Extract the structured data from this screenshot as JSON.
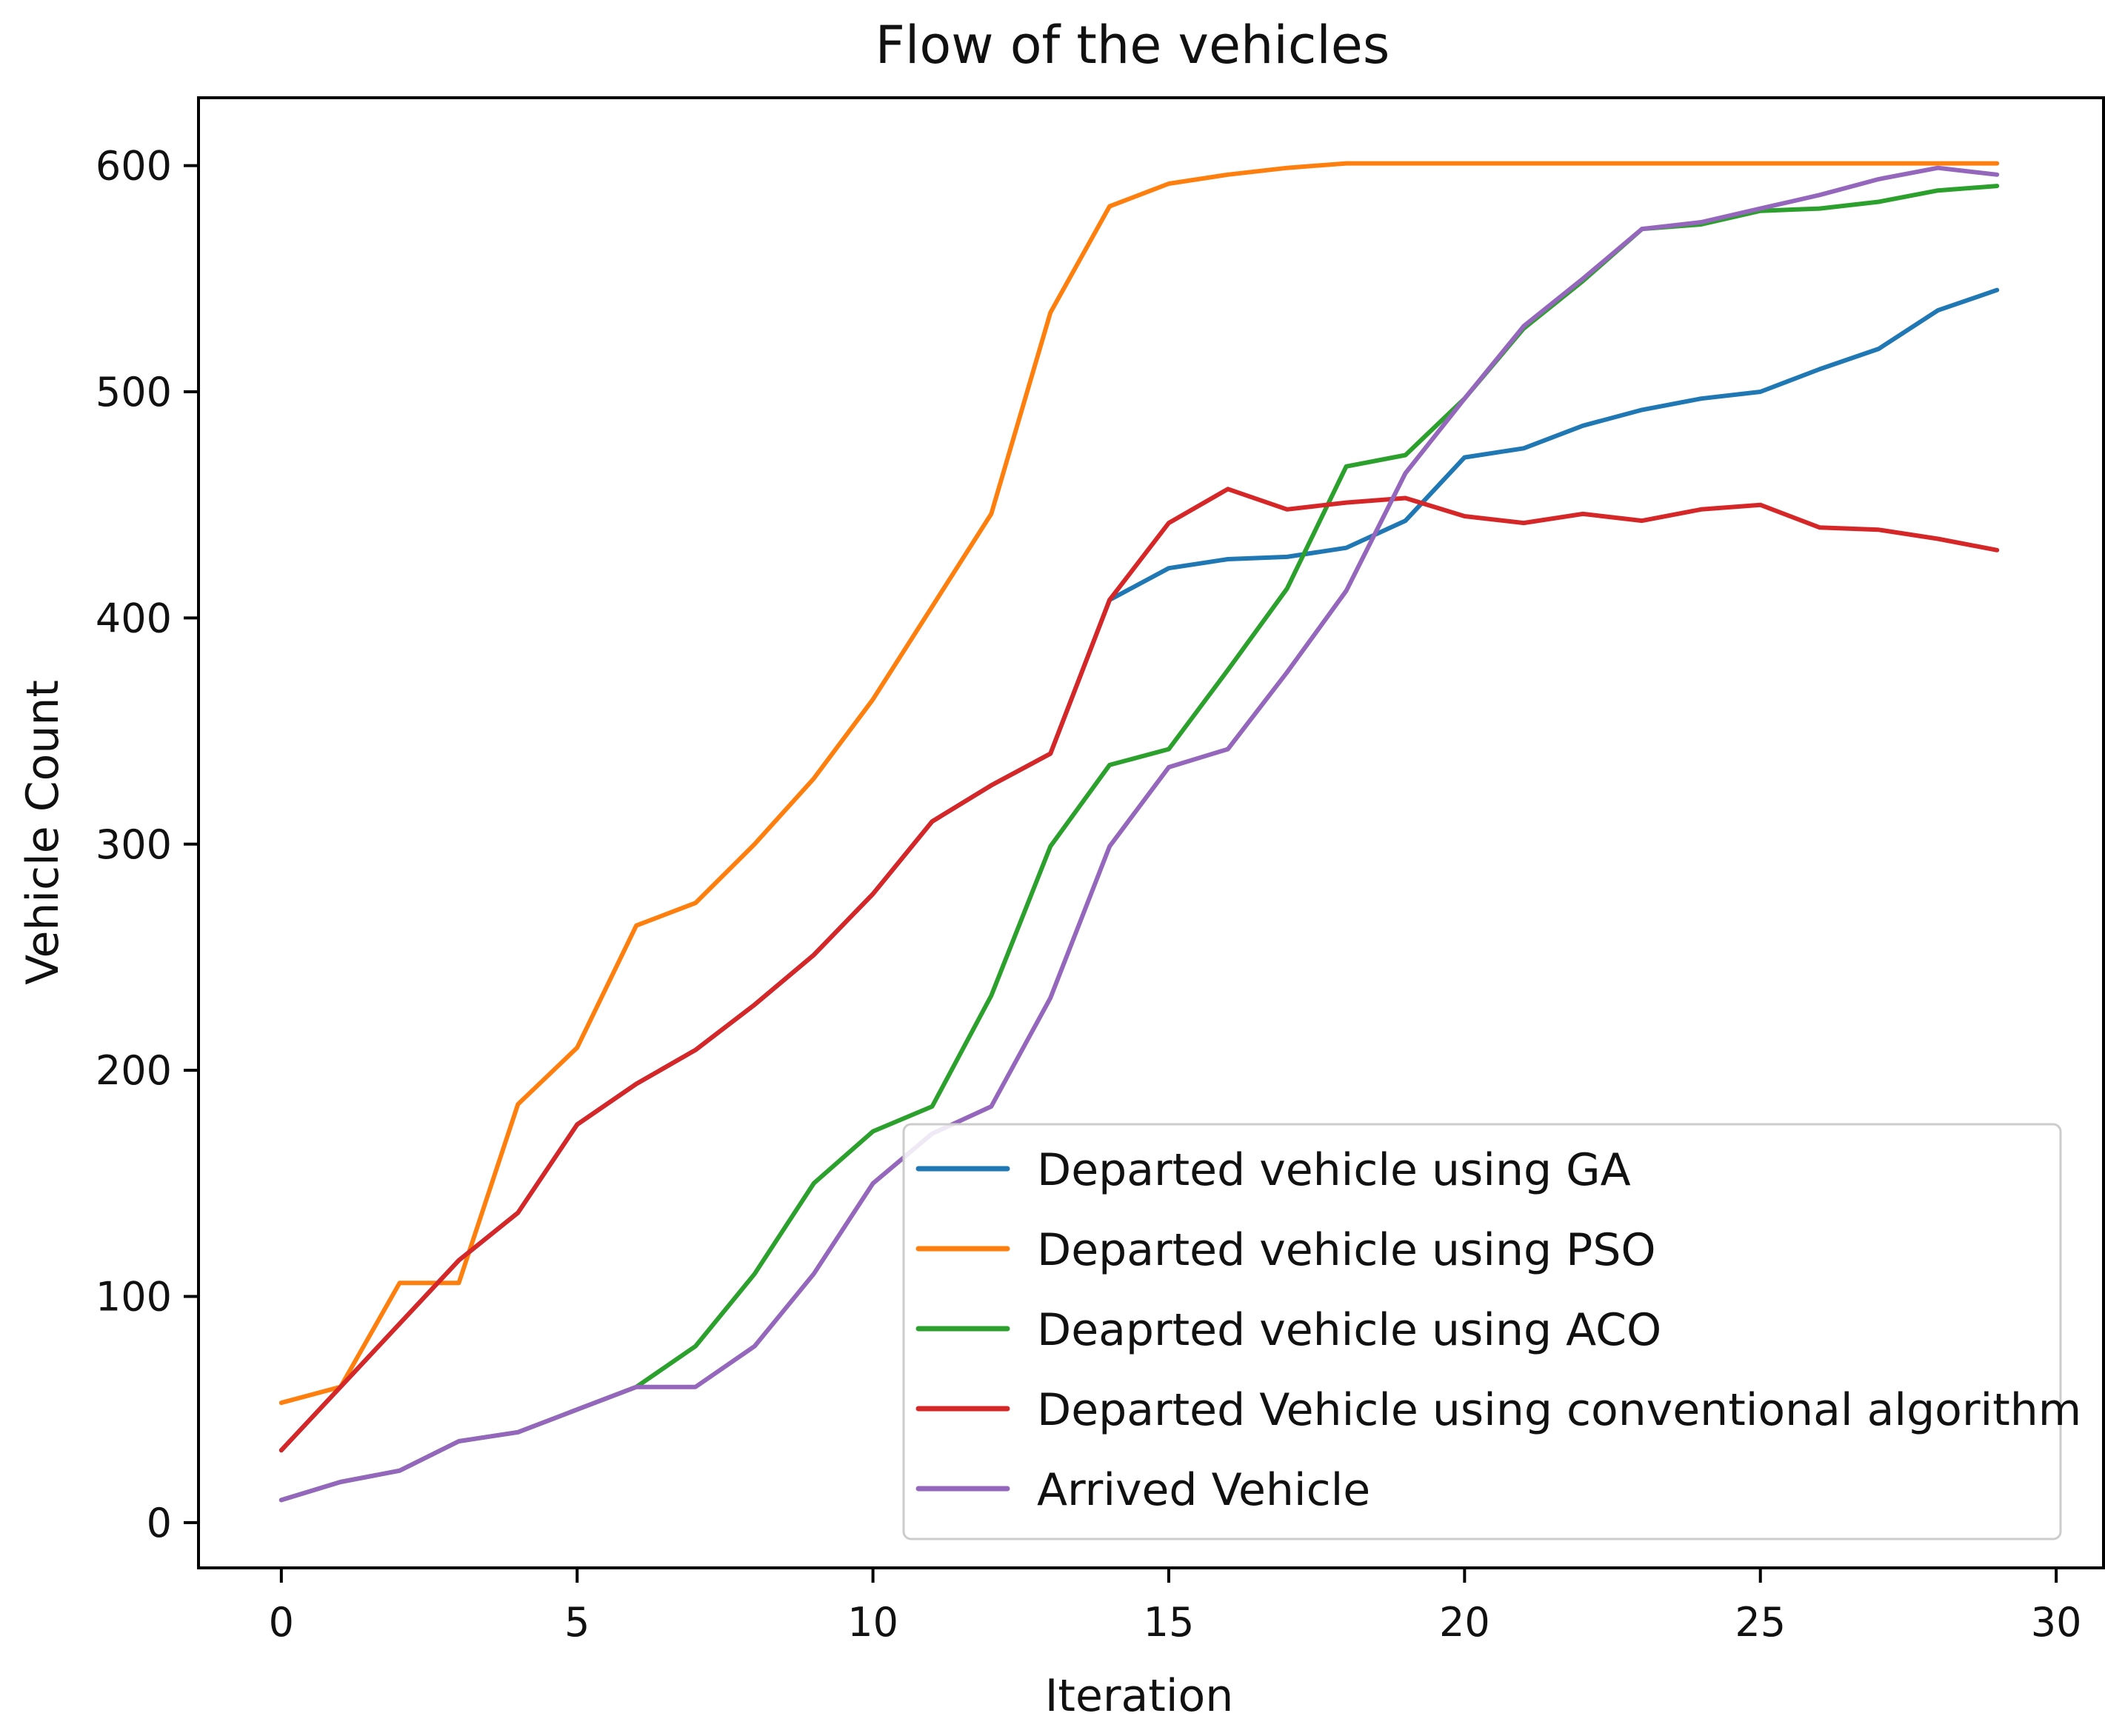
{
  "chart_data": {
    "type": "line",
    "title": "Flow of the vehicles",
    "xlabel": "Iteration",
    "ylabel": "Vehicle Count",
    "xlim": [
      -1.4,
      30.8
    ],
    "ylim": [
      -20,
      630
    ],
    "xticks": [
      0,
      5,
      10,
      15,
      20,
      25,
      30
    ],
    "yticks": [
      0,
      100,
      200,
      300,
      400,
      500,
      600
    ],
    "grid": false,
    "legend_position": "lower-right",
    "x": [
      0,
      1,
      2,
      3,
      4,
      5,
      6,
      7,
      8,
      9,
      10,
      11,
      12,
      13,
      14,
      15,
      16,
      17,
      18,
      19,
      20,
      21,
      22,
      23,
      24,
      25,
      26,
      27,
      28,
      29
    ],
    "series": [
      {
        "name": "Departed vehicle using GA",
        "color": "#1f77b4",
        "values": [
          32,
          60,
          88,
          116,
          137,
          176,
          194,
          209,
          229,
          251,
          278,
          310,
          326,
          340,
          408,
          422,
          426,
          427,
          431,
          443,
          471,
          475,
          485,
          492,
          497,
          500,
          510,
          519,
          536,
          545
        ]
      },
      {
        "name": "Departed vehicle using PSO",
        "color": "#ff7f0e",
        "values": [
          53,
          60,
          106,
          106,
          185,
          210,
          264,
          274,
          300,
          329,
          364,
          405,
          446,
          535,
          582,
          592,
          596,
          599,
          601,
          601,
          601,
          601,
          601,
          601,
          601,
          601,
          601,
          601,
          601,
          601
        ]
      },
      {
        "name": "Deaprted vehicle using ACO",
        "color": "#2ca02c",
        "values": [
          10,
          18,
          23,
          36,
          40,
          50,
          60,
          78,
          110,
          150,
          173,
          184,
          233,
          299,
          335,
          342,
          377,
          413,
          467,
          472,
          497,
          528,
          549,
          572,
          574,
          580,
          581,
          584,
          589,
          591
        ]
      },
      {
        "name": "Departed Vehicle using conventional algorithm",
        "color": "#d62728",
        "values": [
          32,
          60,
          88,
          116,
          137,
          176,
          194,
          209,
          229,
          251,
          278,
          310,
          326,
          340,
          408,
          442,
          457,
          448,
          451,
          453,
          445,
          442,
          446,
          443,
          448,
          450,
          440,
          439,
          435,
          430
        ]
      },
      {
        "name": "Arrived Vehicle",
        "color": "#9467bd",
        "values": [
          10,
          18,
          23,
          36,
          40,
          50,
          60,
          60,
          78,
          110,
          150,
          172,
          184,
          232,
          299,
          334,
          342,
          376,
          412,
          464,
          497,
          529,
          550,
          572,
          575,
          581,
          587,
          594,
          599,
          596
        ]
      }
    ]
  }
}
